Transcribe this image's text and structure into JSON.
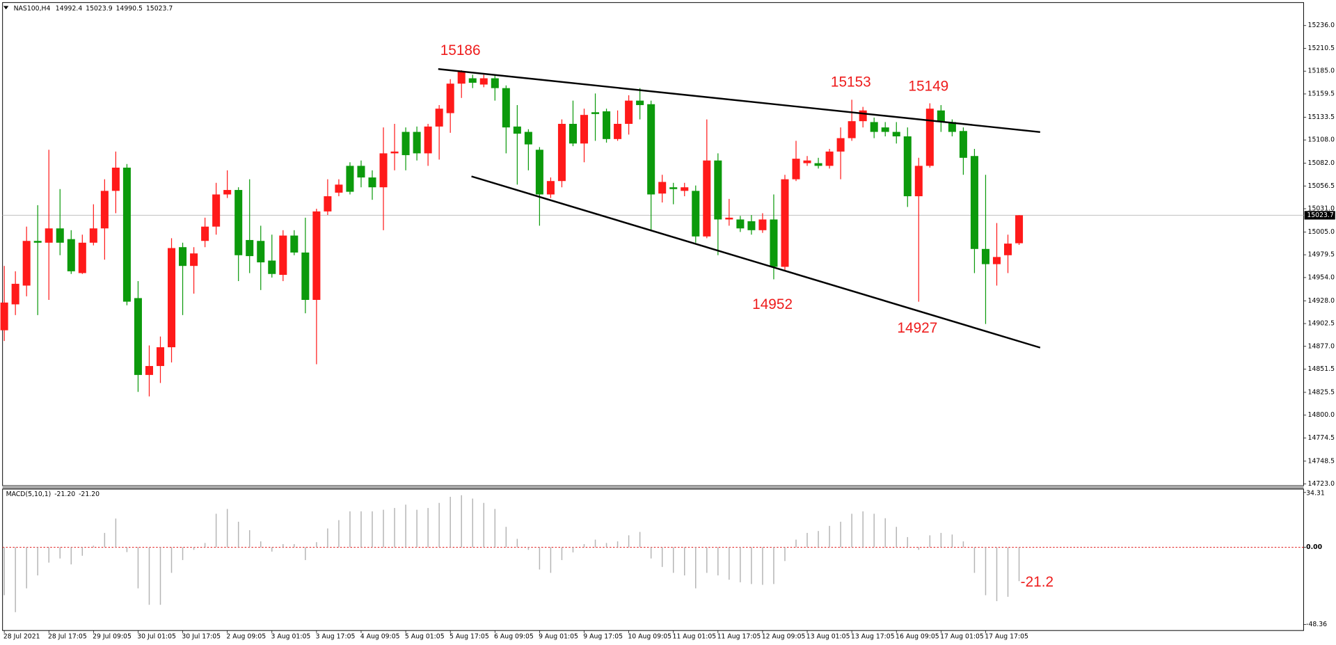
{
  "chart_data": {
    "type": "candlestick",
    "title": "NAS100,H4",
    "categories": [
      "28 Jul 2021",
      null,
      null,
      null,
      "28 Jul 17:05",
      null,
      null,
      null,
      "29 Jul 09:05",
      null,
      null,
      null,
      "30 Jul 01:05",
      null,
      null,
      null,
      "30 Jul 17:05",
      null,
      null,
      null,
      "2 Aug 09:05",
      null,
      null,
      null,
      "3 Aug 01:05",
      null,
      null,
      null,
      "3 Aug 17:05",
      null,
      null,
      null,
      "4 Aug 09:05",
      null,
      null,
      null,
      "5 Aug 01:05",
      null,
      null,
      null,
      "5 Aug 17:05",
      null,
      null,
      null,
      "6 Aug 09:05",
      null,
      null,
      null,
      "9 Aug 01:05",
      null,
      null,
      null,
      "9 Aug 17:05",
      null,
      null,
      null,
      "10 Aug 09:05",
      null,
      null,
      null,
      "11 Aug 01:05",
      null,
      null,
      null,
      "11 Aug 17:05",
      null,
      null,
      null,
      "12 Aug 09:05",
      null,
      null,
      null,
      "13 Aug 01:05",
      null,
      null,
      null,
      "13 Aug 17:05",
      null,
      null,
      null,
      "16 Aug 09:05",
      null,
      null,
      null,
      "17 Aug 01:05",
      null,
      null,
      null,
      "17 Aug 17:05",
      null,
      null,
      null
    ],
    "open": [
      14895,
      14924,
      14945,
      14995,
      14993,
      15009,
      14997,
      14959,
      14993,
      15009,
      15051,
      15077,
      14931,
      14845,
      14855,
      14876,
      14988,
      14967,
      14995,
      15011,
      15047,
      15052,
      14996,
      14995,
      14973,
      14957,
      15001,
      14982,
      14929,
      15028,
      15049,
      15079,
      15079,
      15066,
      15055,
      15093,
      15117,
      15117,
      15093,
      15123,
      15138,
      15171,
      15177,
      15170,
      15177,
      15166,
      15123,
      15117,
      15097,
      15047,
      15062,
      15126,
      15104,
      15139,
      15140,
      15109,
      15126,
      15152,
      15148,
      15048,
      15055,
      15051,
      15051,
      15000,
      15085,
      15019,
      15019,
      15017,
      15007,
      15019,
      14966,
      15064,
      15082,
      15082,
      15079,
      15095,
      15110,
      15129,
      15128,
      15122,
      15117,
      15112,
      15045,
      15079,
      15141,
      15128,
      15118,
      15090,
      14986,
      14969,
      14979,
      14992.4
    ],
    "high": [
      14967,
      14961,
      15011,
      15035,
      15097,
      15053,
      15007,
      15002,
      15036,
      15064,
      15095,
      15081,
      14950,
      14878,
      14888,
      14998,
      14993,
      14988,
      15021,
      15060,
      15074,
      15055,
      15064,
      15012,
      15002,
      15007,
      15007,
      15021,
      15031,
      15064,
      15064,
      15083,
      15085,
      15074,
      15122,
      15126,
      15122,
      15123,
      15126,
      15147,
      15176,
      15186,
      15181,
      15181,
      15181,
      15169,
      15147,
      15120,
      15100,
      15066,
      15131,
      15152,
      15143,
      15160,
      15143,
      15141,
      15158,
      15166,
      15152,
      15069,
      15060,
      15060,
      15057,
      15131,
      15093,
      15042,
      15023,
      15024,
      15026,
      15047,
      15069,
      15107,
      15090,
      15088,
      15098,
      15122,
      15153,
      15145,
      15133,
      15128,
      15128,
      15122,
      15088,
      15149,
      15147,
      15131,
      15122,
      15098,
      15069,
      15015,
      15002,
      15023.9
    ],
    "low": [
      14883,
      14912,
      14933,
      14912,
      14929,
      14979,
      14958,
      14958,
      14990,
      14974,
      15026,
      14923,
      14826,
      14821,
      14836,
      14859,
      14912,
      14936,
      14988,
      15002,
      15043,
      14950,
      14959,
      14940,
      14954,
      14950,
      14979,
      14914,
      14857,
      15024,
      15045,
      15047,
      15055,
      15041,
      15007,
      15074,
      15074,
      15085,
      15079,
      15086,
      15116,
      15155,
      15166,
      15167,
      15152,
      15093,
      15058,
      15074,
      15012,
      15043,
      15055,
      15101,
      15083,
      15107,
      15105,
      15107,
      15114,
      15131,
      15007,
      15038,
      15036,
      15045,
      14993,
      14998,
      14979,
      15012,
      15005,
      15002,
      15004,
      14952,
      14961,
      15062,
      15079,
      15076,
      15076,
      15064,
      15107,
      15122,
      15110,
      15112,
      15104,
      15033,
      14927,
      15077,
      15117,
      15112,
      15069,
      14959,
      14902,
      14945,
      14959,
      14990.5
    ],
    "close": [
      14926,
      14947,
      14995,
      14993,
      15009,
      14993,
      14961,
      14993,
      15009,
      15051,
      15077,
      14927,
      14845,
      14855,
      14876,
      14987,
      14967,
      14981,
      15011,
      15047,
      15052,
      14979,
      14978,
      14971,
      14958,
      15001,
      14982,
      14929,
      15028,
      15045,
      15058,
      15050,
      15066,
      15055,
      15093,
      15095,
      15091,
      15093,
      15123,
      15143,
      15171,
      15184,
      15172,
      15177,
      15166,
      15122,
      15115,
      15103,
      15047,
      15062,
      15126,
      15104,
      15136,
      15137,
      15109,
      15126,
      15152,
      15147,
      15047,
      15061,
      15053,
      15055,
      15000,
      15085,
      15019,
      15021,
      15009,
      15007,
      15019,
      14966,
      15064,
      15087,
      15085,
      15079,
      15095,
      15110,
      15129,
      15141,
      15117,
      15117,
      15112,
      15045,
      15079,
      15143,
      15128,
      15117,
      15088,
      14986,
      14969,
      14977,
      14992,
      15023.7
    ],
    "up_color": "#ff1a1a",
    "down_color": "#0c9a0c",
    "ylim": [
      14723,
      15236
    ],
    "yticks": [
      {
        "value": 15236,
        "label": "15236.0"
      },
      {
        "value": 15210.5,
        "label": "15210.5"
      },
      {
        "value": 15185,
        "label": "15185.0"
      },
      {
        "value": 15159.5,
        "label": "15159.5"
      },
      {
        "value": 15133.5,
        "label": "15133.5"
      },
      {
        "value": 15108,
        "label": "15108.0"
      },
      {
        "value": 15082,
        "label": "15082.0"
      },
      {
        "value": 15056.5,
        "label": "15056.5"
      },
      {
        "value": 15031,
        "label": "15031.0"
      },
      {
        "value": 15005,
        "label": "15005.0"
      },
      {
        "value": 14979.5,
        "label": "14979.5"
      },
      {
        "value": 14954,
        "label": "14954.0"
      },
      {
        "value": 14928,
        "label": "14928.0"
      },
      {
        "value": 14902.5,
        "label": "14902.5"
      },
      {
        "value": 14877,
        "label": "14877.0"
      },
      {
        "value": 14851.5,
        "label": "14851.5"
      },
      {
        "value": 14825.5,
        "label": "14825.5"
      },
      {
        "value": 14800,
        "label": "14800.0"
      },
      {
        "value": 14774.5,
        "label": "14774.5"
      },
      {
        "value": 14748.5,
        "label": "14748.5"
      },
      {
        "value": 14723,
        "label": "14723.0"
      }
    ],
    "annotations": [
      "15186",
      "15153",
      "15149",
      "14952",
      "14927",
      "-21.2"
    ],
    "indicator": {
      "name": "MACD(5,10,1)",
      "header": [
        {
          "value": -21.2,
          "label": "-21.20"
        },
        {
          "value": -21.2,
          "label": "-21.20"
        }
      ],
      "color": "#b4b4b4",
      "values": [
        -30,
        -40.6,
        -25.7,
        -17.6,
        -9.6,
        -7,
        -10.7,
        -5.3,
        1,
        9,
        18,
        -3,
        -25.7,
        -36,
        -36,
        -16,
        -8,
        -1.6,
        2.7,
        21,
        24,
        16,
        10.7,
        3.7,
        -2.7,
        2,
        2,
        -8,
        3.2,
        11.8,
        17,
        22.5,
        22.5,
        22.5,
        23.5,
        24.6,
        26.7,
        23.5,
        24.6,
        27.8,
        31.6,
        32.6,
        30.5,
        27.8,
        24,
        12.8,
        5.3,
        -1.6,
        -13.9,
        -16,
        -8,
        -3.2,
        2,
        4.8,
        2.7,
        3.7,
        7.5,
        9.6,
        -7,
        -12.3,
        -16,
        -17.6,
        -25.7,
        -16,
        -17.6,
        -20.3,
        -21.9,
        -23,
        -23.5,
        -23,
        -8.6,
        4.8,
        9,
        10.2,
        13.4,
        16,
        21,
        22.5,
        21,
        18.2,
        12.8,
        6.4,
        -1.6,
        7.5,
        9,
        8,
        3.7,
        -16,
        -30,
        -33.7,
        -31,
        -21.2
      ],
      "y2lim": [
        -48.36,
        34.31
      ],
      "y2ticks": [
        34.31,
        {
          "value": 0,
          "label": "0.00"
        },
        -48.36
      ]
    }
  }
}
